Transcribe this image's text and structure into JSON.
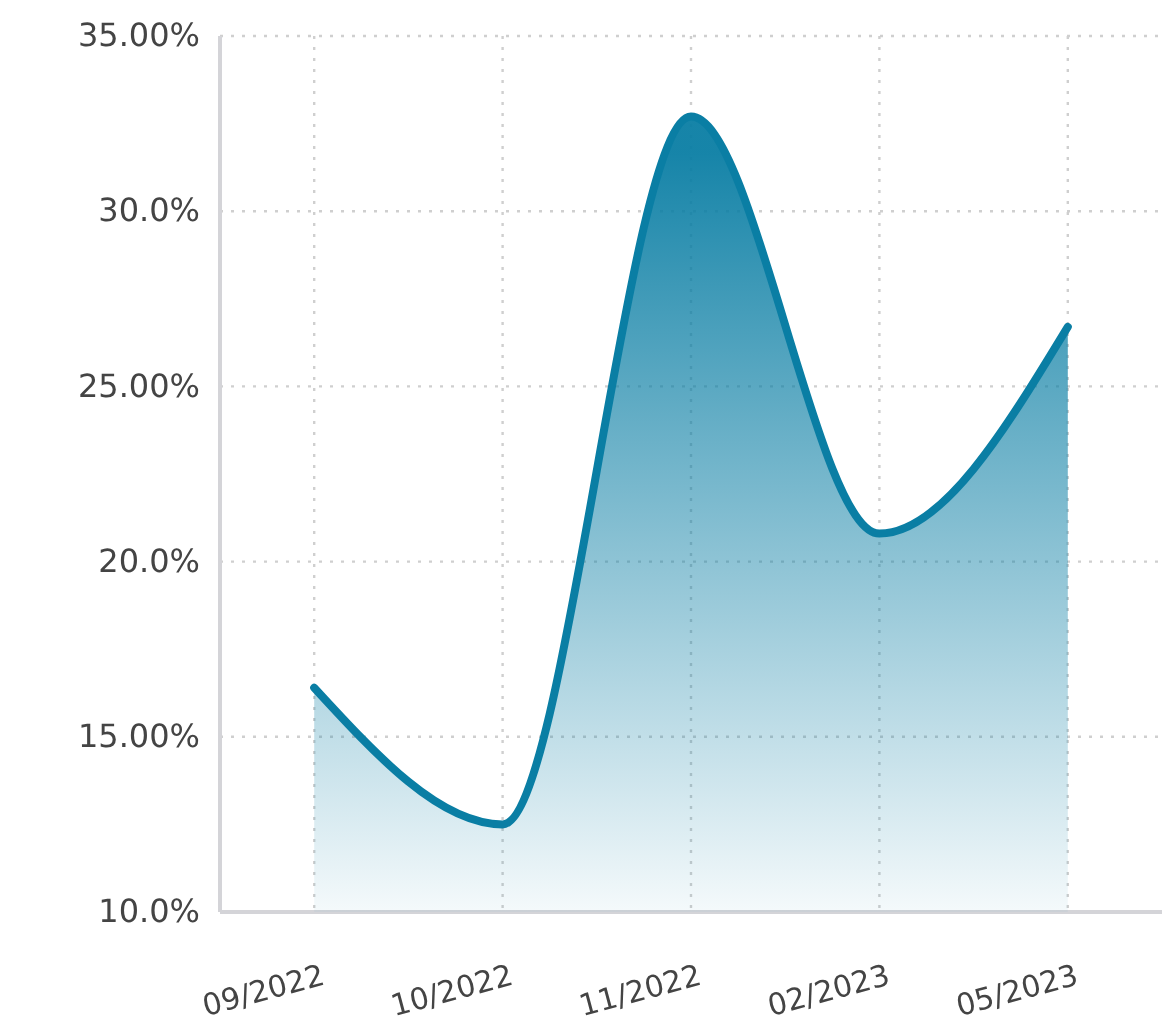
{
  "chart_data": {
    "type": "area",
    "categories": [
      "09/2022",
      "10/2022",
      "11/2022",
      "02/2023",
      "05/2023"
    ],
    "series": [
      {
        "color": "#0a7ea4",
        "values": [
          16.4,
          12.5,
          32.7,
          20.8,
          26.7
        ]
      }
    ],
    "ylim": [
      10,
      35
    ],
    "yticks": [
      {
        "value": 10,
        "label": "10.0%"
      },
      {
        "value": 15,
        "label": "15.00%"
      },
      {
        "value": 20,
        "label": "20.0%"
      },
      {
        "value": 25,
        "label": "25.00%"
      },
      {
        "value": 30,
        "label": "30.0%"
      },
      {
        "value": 35,
        "label": "35.00%"
      }
    ],
    "grid": true
  }
}
